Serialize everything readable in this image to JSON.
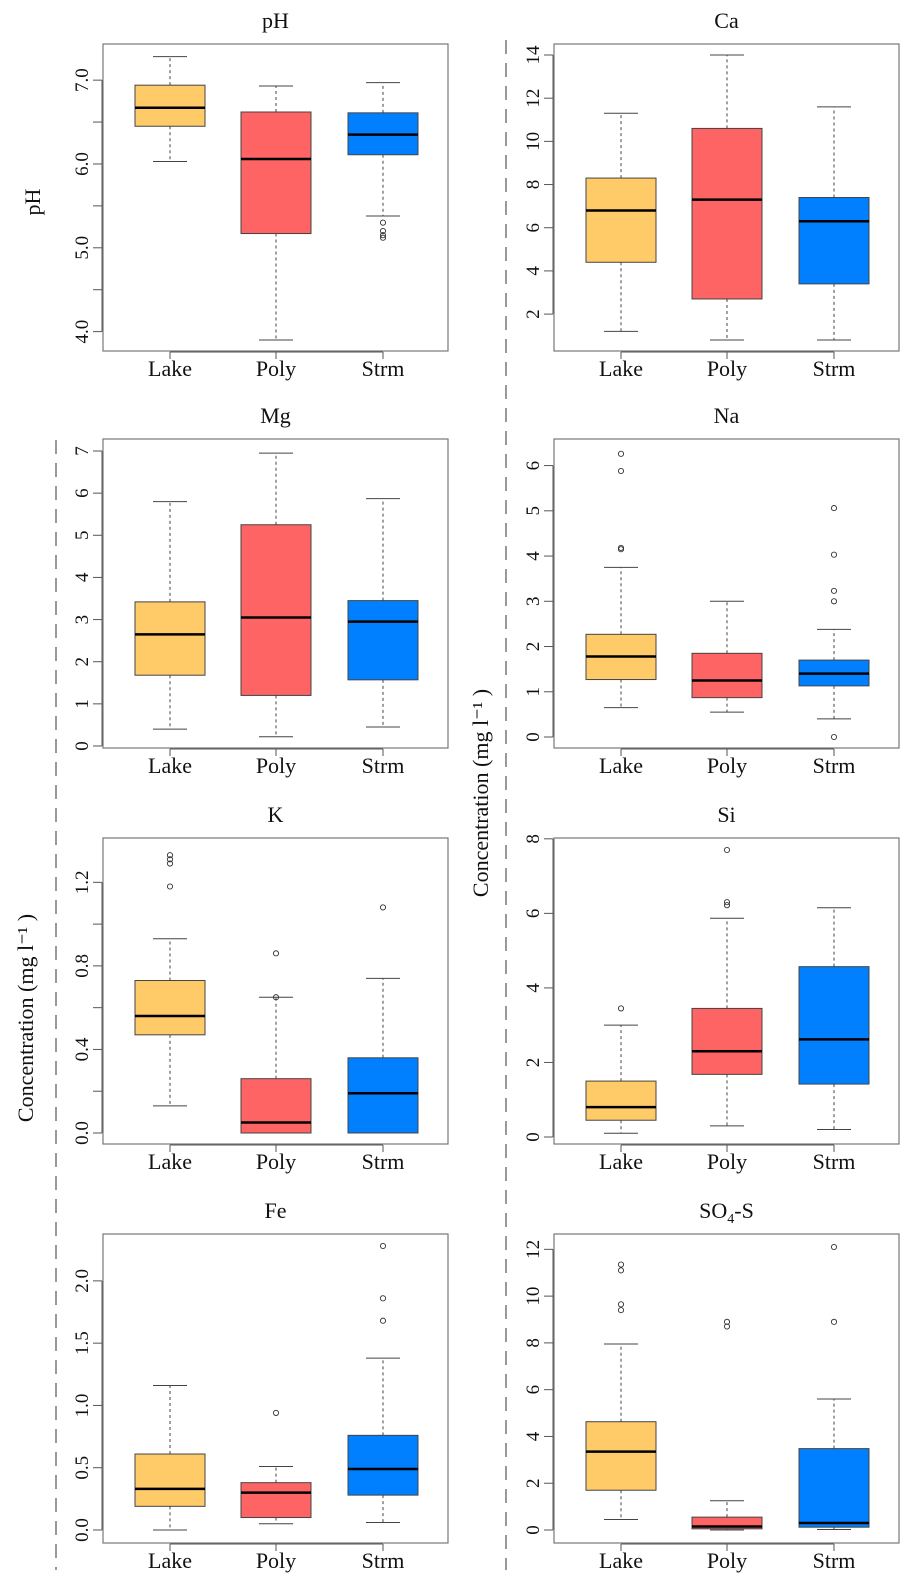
{
  "colors": {
    "Lake": "#FFCB69",
    "Poly": "#FF6464",
    "Strm": "#0080FF",
    "frame": "#777777",
    "divider": "#999999"
  },
  "axis_titles": {
    "ph": "pH",
    "concentration_left": "Concentration (mg l⁻¹ )",
    "concentration_right": "Concentration (mg l⁻¹ )"
  },
  "chart_data": [
    {
      "type": "boxplot",
      "title": "pH",
      "categories": [
        "Lake",
        "Poly",
        "Strm"
      ],
      "ylim": [
        3.9,
        7.3
      ],
      "yticks": [
        4.0,
        4.5,
        5.0,
        5.5,
        6.0,
        6.5,
        7.0
      ],
      "ytick_labels": [
        "4.0",
        "",
        "5.0",
        "",
        "6.0",
        "",
        "7.0"
      ],
      "boxes": [
        {
          "min": 6.03,
          "q1": 6.45,
          "median": 6.67,
          "q3": 6.94,
          "max": 7.28,
          "outliers": []
        },
        {
          "min": 3.9,
          "q1": 5.17,
          "median": 6.06,
          "q3": 6.62,
          "max": 6.93,
          "outliers": []
        },
        {
          "min": 5.38,
          "q1": 6.11,
          "median": 6.35,
          "q3": 6.61,
          "max": 6.97,
          "outliers": [
            5.12,
            5.15,
            5.2,
            5.3
          ]
        }
      ]
    },
    {
      "type": "boxplot",
      "title": "Ca",
      "categories": [
        "Lake",
        "Poly",
        "Strm"
      ],
      "ylim": [
        0.8,
        14.0
      ],
      "yticks": [
        2,
        4,
        6,
        8,
        10,
        12,
        14
      ],
      "ytick_labels": [
        "2",
        "4",
        "6",
        "8",
        "10",
        "12",
        "14"
      ],
      "boxes": [
        {
          "min": 1.2,
          "q1": 4.4,
          "median": 6.8,
          "q3": 8.3,
          "max": 11.3,
          "outliers": []
        },
        {
          "min": 0.8,
          "q1": 2.7,
          "median": 7.3,
          "q3": 10.6,
          "max": 14.0,
          "outliers": []
        },
        {
          "min": 0.8,
          "q1": 3.4,
          "median": 6.3,
          "q3": 7.4,
          "max": 11.6,
          "outliers": []
        }
      ]
    },
    {
      "type": "boxplot",
      "title": "Mg",
      "categories": [
        "Lake",
        "Poly",
        "Strm"
      ],
      "ylim": [
        0,
        7
      ],
      "yticks": [
        0,
        1,
        2,
        3,
        4,
        5,
        6,
        7
      ],
      "ytick_labels": [
        "0",
        "1",
        "2",
        "3",
        "4",
        "5",
        "6",
        "7"
      ],
      "boxes": [
        {
          "min": 0.4,
          "q1": 1.68,
          "median": 2.65,
          "q3": 3.42,
          "max": 5.8,
          "outliers": []
        },
        {
          "min": 0.22,
          "q1": 1.2,
          "median": 3.05,
          "q3": 5.25,
          "max": 6.95,
          "outliers": []
        },
        {
          "min": 0.45,
          "q1": 1.57,
          "median": 2.95,
          "q3": 3.45,
          "max": 5.87,
          "outliers": []
        }
      ]
    },
    {
      "type": "boxplot",
      "title": "Na",
      "categories": [
        "Lake",
        "Poly",
        "Strm"
      ],
      "ylim": [
        0,
        6.3
      ],
      "yticks": [
        0,
        1,
        2,
        3,
        4,
        5,
        6
      ],
      "ytick_labels": [
        "0",
        "1",
        "2",
        "3",
        "4",
        "5",
        "6"
      ],
      "boxes": [
        {
          "min": 0.65,
          "q1": 1.27,
          "median": 1.78,
          "q3": 2.27,
          "max": 3.75,
          "outliers": [
            4.15,
            4.18,
            5.88,
            6.26
          ]
        },
        {
          "min": 0.55,
          "q1": 0.87,
          "median": 1.25,
          "q3": 1.85,
          "max": 3.0,
          "outliers": []
        },
        {
          "min": 0.4,
          "q1": 1.13,
          "median": 1.4,
          "q3": 1.7,
          "max": 2.38,
          "outliers": [
            0.0,
            3.0,
            3.23,
            4.03,
            5.06
          ]
        }
      ]
    },
    {
      "type": "boxplot",
      "title": "K",
      "categories": [
        "Lake",
        "Poly",
        "Strm"
      ],
      "ylim": [
        0,
        1.35
      ],
      "yticks": [
        0.0,
        0.2,
        0.4,
        0.6,
        0.8,
        1.0,
        1.2
      ],
      "ytick_labels": [
        "0.0",
        "",
        "0.4",
        "",
        "0.8",
        "",
        "1.2"
      ],
      "boxes": [
        {
          "min": 0.13,
          "q1": 0.47,
          "median": 0.56,
          "q3": 0.73,
          "max": 0.93,
          "outliers": [
            1.18,
            1.29,
            1.31,
            1.33
          ]
        },
        {
          "min": 0.0,
          "q1": 0.0,
          "median": 0.05,
          "q3": 0.26,
          "max": 0.65,
          "outliers": [
            0.65,
            0.86
          ]
        },
        {
          "min": 0.0,
          "q1": 0.0,
          "median": 0.19,
          "q3": 0.36,
          "max": 0.74,
          "outliers": [
            1.08
          ]
        }
      ]
    },
    {
      "type": "boxplot",
      "title": "Si",
      "categories": [
        "Lake",
        "Poly",
        "Strm"
      ],
      "ylim": [
        0,
        7.7
      ],
      "yticks": [
        0,
        2,
        4,
        6,
        8
      ],
      "ytick_labels": [
        "0",
        "2",
        "4",
        "6",
        "8"
      ],
      "boxes": [
        {
          "min": 0.1,
          "q1": 0.45,
          "median": 0.8,
          "q3": 1.5,
          "max": 3.0,
          "outliers": [
            3.45
          ]
        },
        {
          "min": 0.3,
          "q1": 1.68,
          "median": 2.3,
          "q3": 3.45,
          "max": 5.87,
          "outliers": [
            6.22,
            6.3,
            7.7
          ]
        },
        {
          "min": 0.2,
          "q1": 1.42,
          "median": 2.62,
          "q3": 4.57,
          "max": 6.15,
          "outliers": []
        }
      ]
    },
    {
      "type": "boxplot",
      "title": "Fe",
      "categories": [
        "Lake",
        "Poly",
        "Strm"
      ],
      "ylim": [
        0,
        2.28
      ],
      "yticks": [
        0.0,
        0.5,
        1.0,
        1.5,
        2.0
      ],
      "ytick_labels": [
        "0.0",
        "0.5",
        "1.0",
        "1.5",
        "2.0"
      ],
      "boxes": [
        {
          "min": 0.0,
          "q1": 0.19,
          "median": 0.33,
          "q3": 0.61,
          "max": 1.16,
          "outliers": []
        },
        {
          "min": 0.05,
          "q1": 0.1,
          "median": 0.3,
          "q3": 0.38,
          "max": 0.51,
          "outliers": [
            0.94
          ]
        },
        {
          "min": 0.06,
          "q1": 0.28,
          "median": 0.49,
          "q3": 0.76,
          "max": 1.38,
          "outliers": [
            1.68,
            1.86,
            2.28
          ]
        }
      ]
    },
    {
      "type": "boxplot",
      "title": "SO",
      "title_sub": "4",
      "title_suffix": "-S",
      "categories": [
        "Lake",
        "Poly",
        "Strm"
      ],
      "ylim": [
        0,
        12.1
      ],
      "yticks": [
        0,
        2,
        4,
        6,
        8,
        10,
        12
      ],
      "ytick_labels": [
        "0",
        "2",
        "4",
        "6",
        "8",
        "10",
        "12"
      ],
      "boxes": [
        {
          "min": 0.45,
          "q1": 1.7,
          "median": 3.35,
          "q3": 4.63,
          "max": 7.95,
          "outliers": [
            9.4,
            9.65,
            11.1,
            11.35
          ]
        },
        {
          "min": 0.0,
          "q1": 0.05,
          "median": 0.15,
          "q3": 0.55,
          "max": 1.25,
          "outliers": [
            8.7,
            8.9
          ]
        },
        {
          "min": 0.02,
          "q1": 0.12,
          "median": 0.3,
          "q3": 3.48,
          "max": 5.6,
          "outliers": [
            8.9,
            12.1
          ]
        }
      ]
    }
  ]
}
